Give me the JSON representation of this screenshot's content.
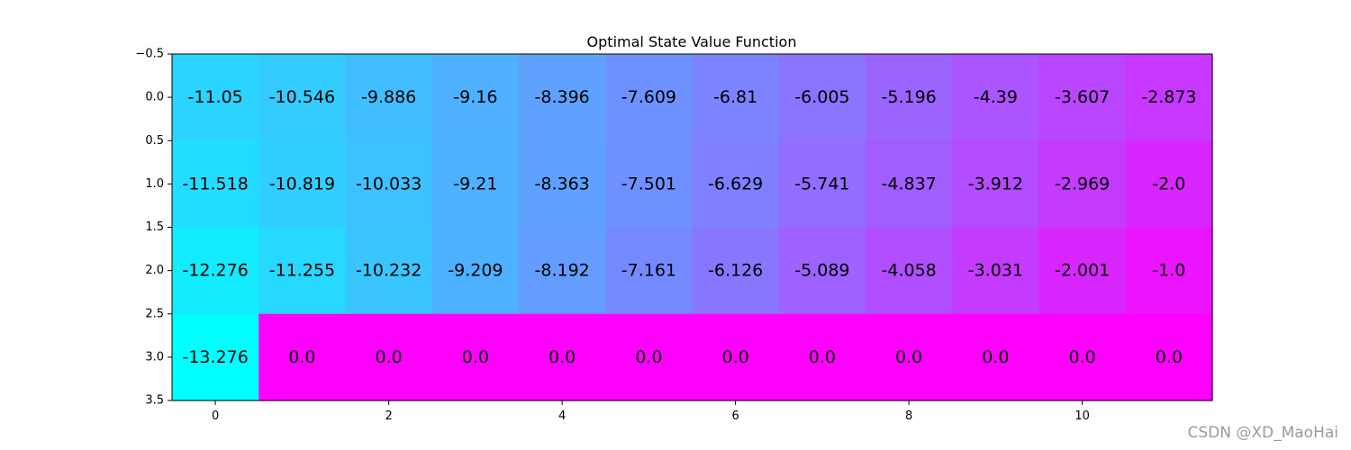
{
  "chart_data": {
    "type": "heatmap",
    "title": "Optimal State Value Function",
    "xlabel": "",
    "ylabel": "",
    "colormap": "cool",
    "vmin": -13.276,
    "vmax": 0.0,
    "xlim": [
      -0.5,
      11.5
    ],
    "ylim": [
      3.5,
      -0.5
    ],
    "x_ticks": [
      0,
      2,
      4,
      6,
      8,
      10
    ],
    "x_tick_labels": [
      "0",
      "2",
      "4",
      "6",
      "8",
      "10"
    ],
    "y_ticks": [
      -0.5,
      0.0,
      0.5,
      1.0,
      1.5,
      2.0,
      2.5,
      3.0,
      3.5
    ],
    "y_tick_labels": [
      "−0.5",
      "0.0",
      "0.5",
      "1.0",
      "1.5",
      "2.0",
      "2.5",
      "3.0",
      "3.5"
    ],
    "grid": false,
    "values": [
      [
        -11.05,
        -10.546,
        -9.886,
        -9.16,
        -8.396,
        -7.609,
        -6.81,
        -6.005,
        -5.196,
        -4.39,
        -3.607,
        -2.873
      ],
      [
        -11.518,
        -10.819,
        -10.033,
        -9.21,
        -8.363,
        -7.501,
        -6.629,
        -5.741,
        -4.837,
        -3.912,
        -2.969,
        -2.0
      ],
      [
        -12.276,
        -11.255,
        -10.232,
        -9.209,
        -8.192,
        -7.161,
        -6.126,
        -5.089,
        -4.058,
        -3.031,
        -2.001,
        -1.0
      ],
      [
        -13.276,
        0.0,
        0.0,
        0.0,
        0.0,
        0.0,
        0.0,
        0.0,
        0.0,
        0.0,
        0.0,
        0.0
      ]
    ],
    "cell_labels": [
      [
        "-11.05",
        "-10.546",
        "-9.886",
        "-9.16",
        "-8.396",
        "-7.609",
        "-6.81",
        "-6.005",
        "-5.196",
        "-4.39",
        "-3.607",
        "-2.873"
      ],
      [
        "-11.518",
        "-10.819",
        "-10.033",
        "-9.21",
        "-8.363",
        "-7.501",
        "-6.629",
        "-5.741",
        "-4.837",
        "-3.912",
        "-2.969",
        "-2.0"
      ],
      [
        "-12.276",
        "-11.255",
        "-10.232",
        "-9.209",
        "-8.192",
        "-7.161",
        "-6.126",
        "-5.089",
        "-4.058",
        "-3.031",
        "-2.001",
        "-1.0"
      ],
      [
        "-13.276",
        "0.0",
        "0.0",
        "0.0",
        "0.0",
        "0.0",
        "0.0",
        "0.0",
        "0.0",
        "0.0",
        "0.0",
        "0.0"
      ]
    ]
  },
  "watermark": "CSDN @XD_MaoHai"
}
